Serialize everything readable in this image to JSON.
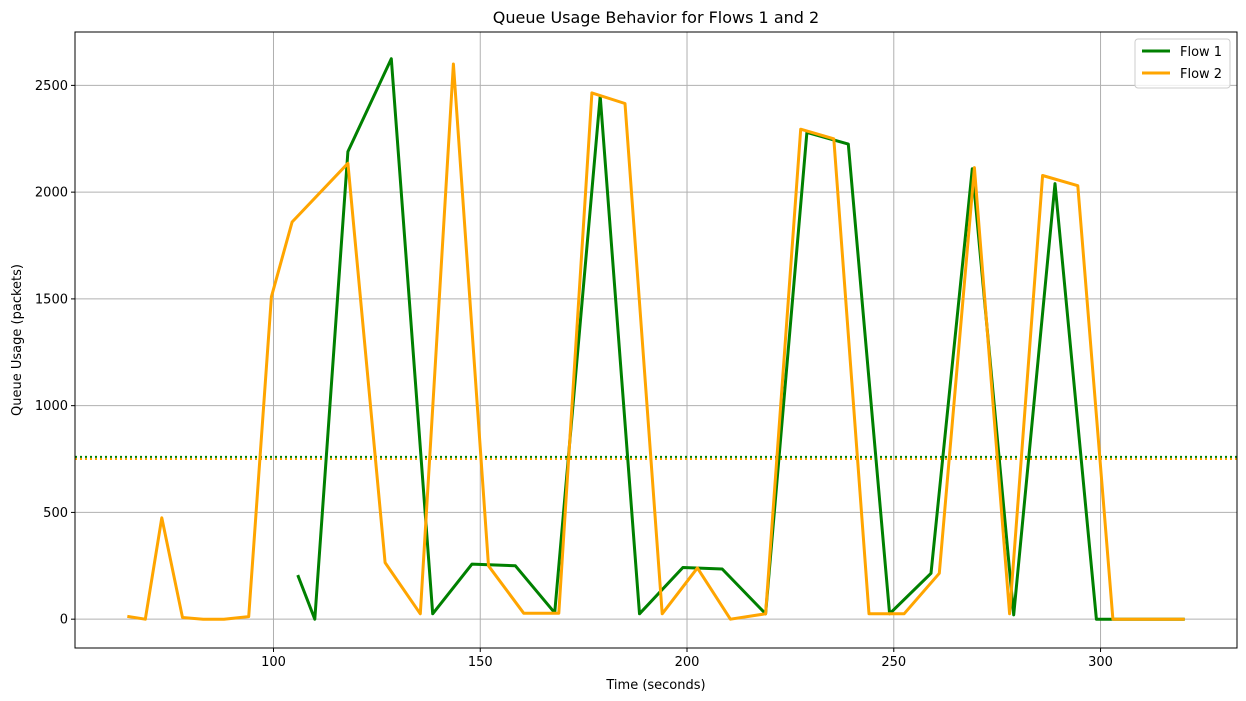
{
  "chart_data": {
    "type": "line",
    "title": "Queue Usage Behavior for Flows 1 and 2",
    "xlabel": "Time (seconds)",
    "ylabel": "Queue Usage (packets)",
    "xlim": [
      52,
      333
    ],
    "ylim": [
      -135,
      2750
    ],
    "x_ticks": [
      100,
      150,
      200,
      250,
      300
    ],
    "y_ticks": [
      0,
      500,
      1000,
      1500,
      2000,
      2500
    ],
    "grid": true,
    "legend_position": "top-right",
    "series": [
      {
        "name": "Flow 1",
        "color": "#008000",
        "points": [
          [
            106,
            200
          ],
          [
            110,
            0
          ],
          [
            118,
            2190
          ],
          [
            128.5,
            2625
          ],
          [
            138.5,
            25
          ],
          [
            148,
            258
          ],
          [
            158.5,
            250
          ],
          [
            168,
            30
          ],
          [
            179,
            2450
          ],
          [
            188.5,
            25
          ],
          [
            199,
            242
          ],
          [
            208.5,
            235
          ],
          [
            219,
            25
          ],
          [
            229,
            2280
          ],
          [
            239,
            2225
          ],
          [
            249,
            25
          ],
          [
            259,
            215
          ],
          [
            269,
            2110
          ],
          [
            279,
            20
          ],
          [
            289,
            2040
          ],
          [
            299,
            0
          ],
          [
            309,
            0
          ],
          [
            320,
            0
          ]
        ],
        "threshold": 760
      },
      {
        "name": "Flow 2",
        "color": "#ffa500",
        "points": [
          [
            65,
            12
          ],
          [
            69,
            0
          ],
          [
            73,
            475
          ],
          [
            78,
            8
          ],
          [
            83,
            0
          ],
          [
            88,
            0
          ],
          [
            94,
            12
          ],
          [
            99.5,
            1510
          ],
          [
            104.5,
            1860
          ],
          [
            118,
            2135
          ],
          [
            127,
            265
          ],
          [
            135.5,
            25
          ],
          [
            143.5,
            2600
          ],
          [
            152,
            250
          ],
          [
            160.5,
            28
          ],
          [
            169,
            28
          ],
          [
            177,
            2465
          ],
          [
            185,
            2415
          ],
          [
            194,
            25
          ],
          [
            202.5,
            240
          ],
          [
            210.5,
            0
          ],
          [
            219,
            25
          ],
          [
            227.5,
            2295
          ],
          [
            235.5,
            2250
          ],
          [
            244,
            25
          ],
          [
            252.5,
            25
          ],
          [
            261,
            215
          ],
          [
            269.5,
            2115
          ],
          [
            278,
            25
          ],
          [
            286,
            2078
          ],
          [
            294.5,
            2030
          ],
          [
            303,
            0
          ],
          [
            311.5,
            0
          ],
          [
            320,
            0
          ]
        ],
        "threshold": 750
      }
    ]
  }
}
